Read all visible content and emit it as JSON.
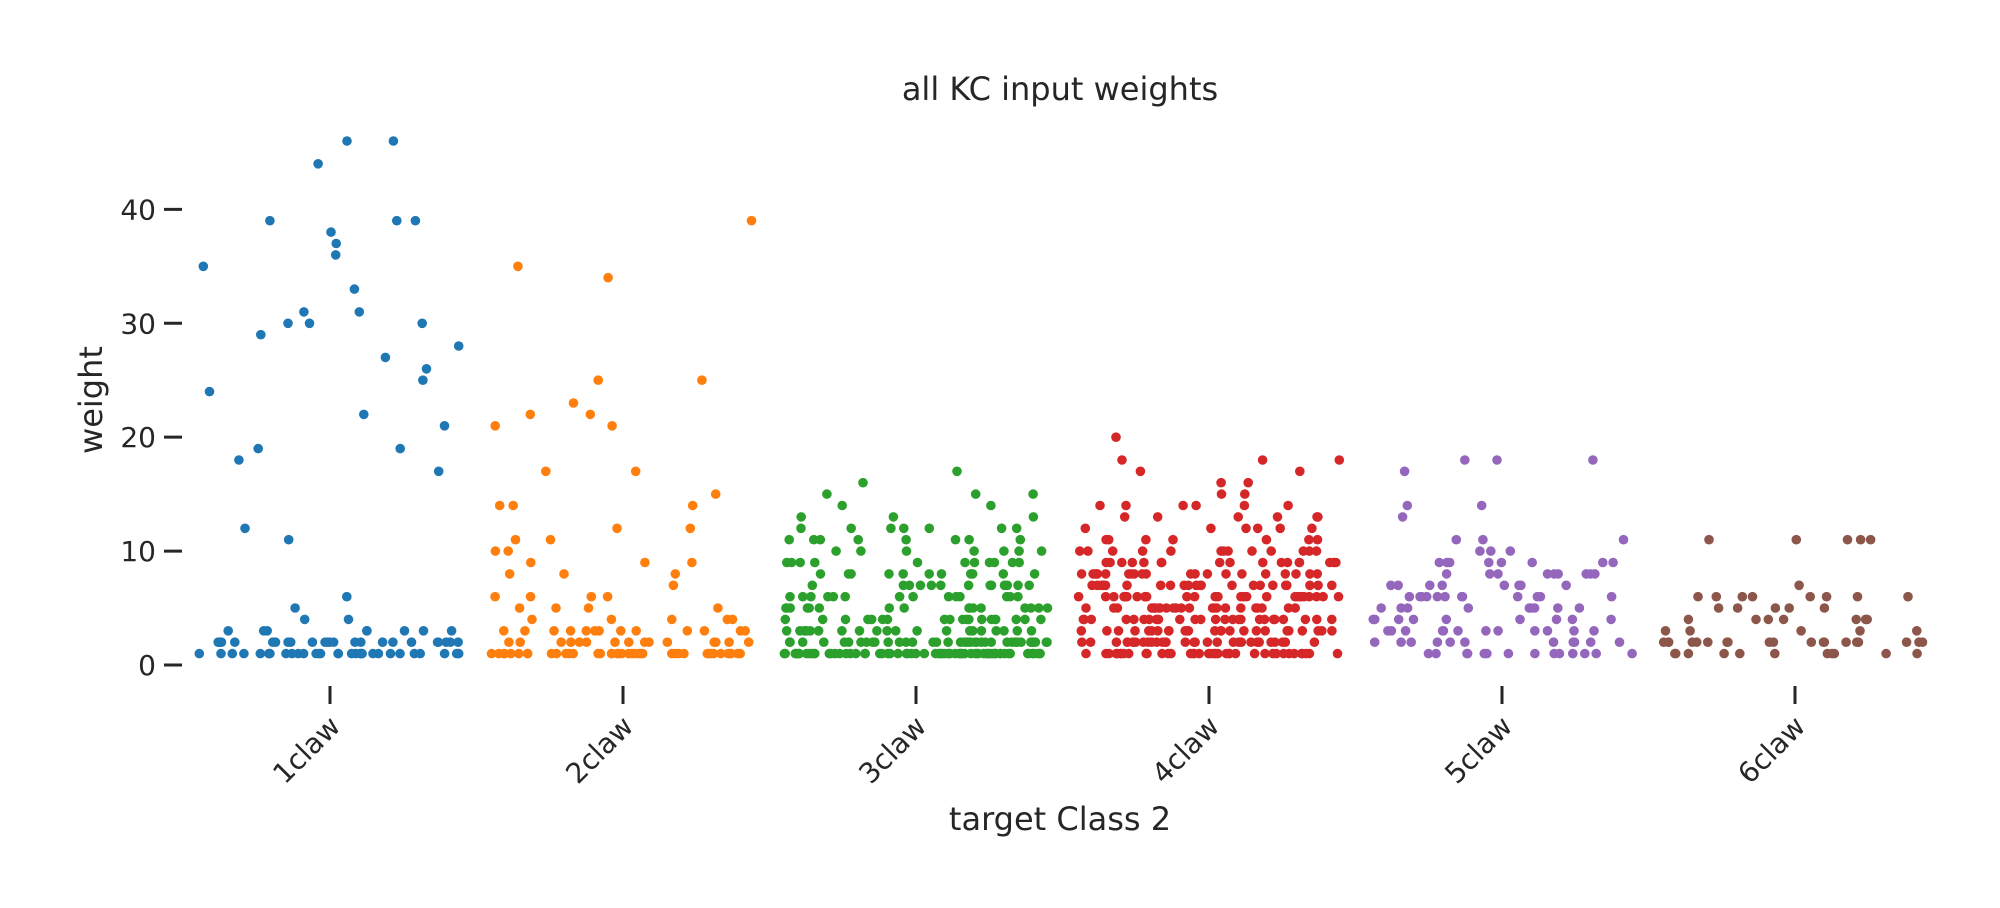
{
  "chart_data": {
    "type": "scatter",
    "subtype": "strip",
    "title": "all KC input weights",
    "xlabel": "target Class 2",
    "ylabel": "weight",
    "categories": [
      "1claw",
      "2claw",
      "3claw",
      "4claw",
      "5claw",
      "6claw"
    ],
    "ylim": [
      0,
      46
    ],
    "yticks": [
      0,
      10,
      20,
      30,
      40
    ],
    "grid": false,
    "legend": "none",
    "colors": [
      "#1f77b4",
      "#ff7f0e",
      "#2ca02c",
      "#d62728",
      "#9467bd",
      "#8c564b"
    ],
    "series": [
      {
        "category": "1claw",
        "values": [
          46,
          46,
          44,
          39,
          39,
          39,
          38,
          37,
          36,
          35,
          33,
          31,
          31,
          30,
          30,
          30,
          29,
          28,
          27,
          26,
          25,
          24,
          22,
          21,
          19,
          19,
          18,
          17,
          12,
          11,
          6,
          5,
          4,
          4,
          3,
          3,
          3,
          3,
          3,
          3,
          3,
          3,
          2,
          2,
          2,
          2,
          2,
          2,
          2,
          2,
          2,
          2,
          2,
          2,
          2,
          2,
          2,
          2,
          2,
          2,
          2,
          2,
          2,
          2,
          2,
          2,
          1,
          1,
          1,
          1,
          1,
          1,
          1,
          1,
          1,
          1,
          1,
          1,
          1,
          1,
          1,
          1,
          1,
          1,
          1,
          1,
          1,
          1,
          1,
          1,
          1,
          1,
          1,
          1,
          1,
          1
        ]
      },
      {
        "category": "2claw",
        "values": [
          39,
          35,
          34,
          25,
          25,
          23,
          22,
          22,
          21,
          21,
          17,
          17,
          15,
          14,
          14,
          14,
          12,
          12,
          11,
          11,
          10,
          10,
          9,
          9,
          9,
          8,
          8,
          8,
          7,
          6,
          6,
          6,
          6,
          5,
          5,
          5,
          5,
          4,
          4,
          4,
          4,
          4,
          3,
          3,
          3,
          3,
          3,
          3,
          3,
          3,
          3,
          3,
          3,
          3,
          3,
          2,
          2,
          2,
          2,
          2,
          2,
          2,
          2,
          2,
          2,
          2,
          2,
          2,
          2,
          2,
          1,
          1,
          1,
          1,
          1,
          1,
          1,
          1,
          1,
          1,
          1,
          1,
          1,
          1,
          1,
          1,
          1,
          1,
          1,
          1,
          1,
          1,
          1,
          1,
          1,
          1,
          1,
          1,
          1,
          1,
          1,
          1,
          1,
          1,
          1,
          1,
          1,
          1,
          1,
          1
        ]
      },
      {
        "category": "3claw",
        "values": [
          17,
          16,
          15,
          15,
          15,
          14,
          14,
          13,
          13,
          13,
          12,
          12,
          12,
          12,
          12,
          12,
          12,
          11,
          11,
          11,
          11,
          11,
          11,
          11,
          11,
          10,
          10,
          10,
          10,
          10,
          10,
          10,
          9,
          9,
          9,
          9,
          9,
          9,
          9,
          9,
          9,
          9,
          9,
          8,
          8,
          8,
          8,
          8,
          8,
          8,
          8,
          8,
          8,
          8,
          7,
          7,
          7,
          7,
          7,
          7,
          7,
          7,
          7,
          7,
          7,
          7,
          7,
          6,
          6,
          6,
          6,
          6,
          6,
          6,
          6,
          6,
          6,
          6,
          6,
          6,
          6,
          5,
          5,
          5,
          5,
          5,
          5,
          5,
          5,
          5,
          5,
          5,
          5,
          5,
          5,
          5,
          5,
          4,
          4,
          4,
          4,
          4,
          4,
          4,
          4,
          4,
          4,
          4,
          4,
          4,
          4,
          4,
          4,
          4,
          4,
          4,
          3,
          3,
          3,
          3,
          3,
          3,
          3,
          3,
          3,
          3,
          3,
          3,
          3,
          3,
          3,
          3,
          3,
          3,
          3,
          3,
          3,
          3,
          2,
          2,
          2,
          2,
          2,
          2,
          2,
          2,
          2,
          2,
          2,
          2,
          2,
          2,
          2,
          2,
          2,
          2,
          2,
          2,
          2,
          2,
          2,
          2,
          2,
          2,
          2,
          2,
          2,
          2,
          2,
          2,
          2,
          2,
          2,
          2,
          2,
          2,
          2,
          1,
          1,
          1,
          1,
          1,
          1,
          1,
          1,
          1,
          1,
          1,
          1,
          1,
          1,
          1,
          1,
          1,
          1,
          1,
          1,
          1,
          1,
          1,
          1,
          1,
          1,
          1,
          1,
          1,
          1,
          1,
          1,
          1,
          1,
          1,
          1,
          1,
          1,
          1,
          1,
          1,
          1,
          1,
          1,
          1,
          1,
          1,
          1,
          1,
          1,
          1,
          1,
          1,
          1,
          1,
          1,
          1,
          1,
          1,
          1,
          1,
          1,
          1,
          1,
          1,
          1,
          1,
          1,
          1,
          1,
          1
        ]
      },
      {
        "category": "4claw",
        "values": [
          20,
          18,
          18,
          18,
          17,
          17,
          16,
          16,
          15,
          15,
          14,
          14,
          14,
          14,
          14,
          14,
          13,
          13,
          13,
          13,
          13,
          13,
          12,
          12,
          12,
          12,
          12,
          12,
          11,
          11,
          11,
          11,
          11,
          11,
          11,
          10,
          10,
          10,
          10,
          10,
          10,
          10,
          10,
          10,
          10,
          10,
          10,
          10,
          9,
          9,
          9,
          9,
          9,
          9,
          9,
          9,
          9,
          9,
          9,
          9,
          9,
          9,
          9,
          9,
          9,
          8,
          8,
          8,
          8,
          8,
          8,
          8,
          8,
          8,
          8,
          8,
          8,
          8,
          8,
          8,
          8,
          8,
          8,
          8,
          8,
          8,
          7,
          7,
          7,
          7,
          7,
          7,
          7,
          7,
          7,
          7,
          7,
          7,
          7,
          7,
          7,
          7,
          7,
          7,
          7,
          7,
          7,
          7,
          6,
          6,
          6,
          6,
          6,
          6,
          6,
          6,
          6,
          6,
          6,
          6,
          6,
          6,
          6,
          6,
          6,
          6,
          6,
          6,
          6,
          6,
          6,
          6,
          6,
          6,
          6,
          5,
          5,
          5,
          5,
          5,
          5,
          5,
          5,
          5,
          5,
          5,
          5,
          5,
          5,
          5,
          5,
          5,
          5,
          5,
          5,
          5,
          5,
          5,
          5,
          5,
          4,
          4,
          4,
          4,
          4,
          4,
          4,
          4,
          4,
          4,
          4,
          4,
          4,
          4,
          4,
          4,
          4,
          4,
          4,
          4,
          4,
          4,
          4,
          4,
          4,
          3,
          3,
          3,
          3,
          3,
          3,
          3,
          3,
          3,
          3,
          3,
          3,
          3,
          3,
          3,
          3,
          3,
          3,
          3,
          3,
          3,
          3,
          3,
          3,
          3,
          3,
          2,
          2,
          2,
          2,
          2,
          2,
          2,
          2,
          2,
          2,
          2,
          2,
          2,
          2,
          2,
          2,
          2,
          2,
          2,
          2,
          2,
          2,
          2,
          2,
          2,
          2,
          2,
          2,
          2,
          2,
          2,
          2,
          1,
          1,
          1,
          1,
          1,
          1,
          1,
          1,
          1,
          1,
          1,
          1,
          1,
          1,
          1,
          1,
          1,
          1,
          1,
          1,
          1,
          1,
          1,
          1,
          1,
          1,
          1,
          1,
          1,
          1,
          1,
          1,
          1,
          1,
          1,
          1,
          1,
          1,
          1
        ]
      },
      {
        "category": "5claw",
        "values": [
          18,
          18,
          18,
          17,
          14,
          14,
          13,
          11,
          11,
          11,
          10,
          10,
          10,
          9,
          9,
          9,
          9,
          9,
          9,
          9,
          9,
          8,
          8,
          8,
          8,
          8,
          8,
          8,
          8,
          8,
          7,
          7,
          7,
          7,
          7,
          7,
          7,
          7,
          6,
          6,
          6,
          6,
          6,
          6,
          6,
          6,
          6,
          6,
          6,
          6,
          5,
          5,
          5,
          5,
          5,
          5,
          5,
          5,
          5,
          4,
          4,
          4,
          4,
          4,
          4,
          4,
          4,
          4,
          3,
          3,
          3,
          3,
          3,
          3,
          3,
          3,
          3,
          3,
          3,
          3,
          2,
          2,
          2,
          2,
          2,
          2,
          2,
          2,
          2,
          2,
          2,
          1,
          1,
          1,
          1,
          1,
          1,
          1,
          1,
          1,
          1,
          1,
          1,
          1,
          1
        ]
      },
      {
        "category": "6claw",
        "values": [
          11,
          11,
          11,
          11,
          11,
          7,
          6,
          6,
          6,
          6,
          6,
          6,
          6,
          6,
          5,
          5,
          5,
          5,
          5,
          4,
          4,
          4,
          4,
          4,
          4,
          4,
          3,
          3,
          3,
          3,
          3,
          2,
          2,
          2,
          2,
          2,
          2,
          2,
          2,
          2,
          2,
          2,
          2,
          2,
          2,
          2,
          2,
          2,
          2,
          2,
          1,
          1,
          1,
          1,
          1,
          1,
          1,
          1,
          1,
          1,
          1
        ]
      }
    ]
  }
}
